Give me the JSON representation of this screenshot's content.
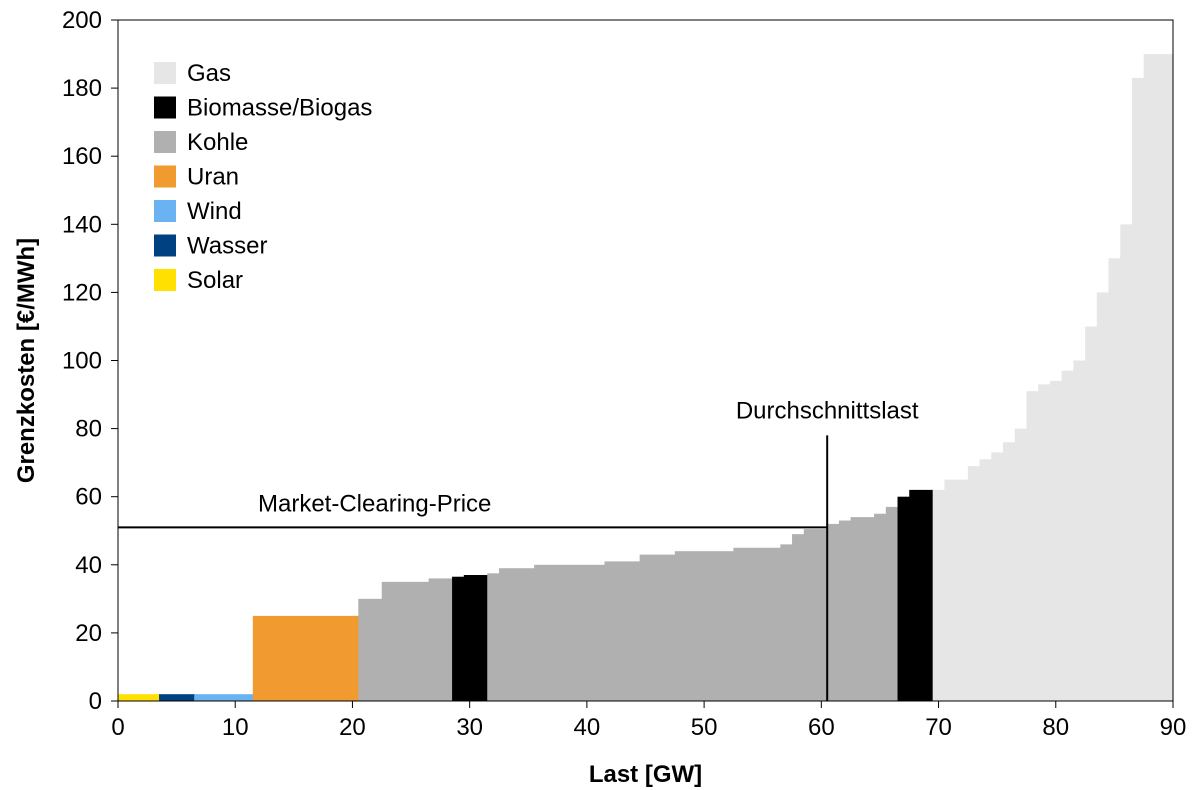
{
  "chart_data": {
    "type": "bar",
    "subtype": "merit-order",
    "xlabel": "Last [GW]",
    "ylabel": "Grenzkosten [€/MWh]",
    "xlim": [
      0,
      90
    ],
    "ylim": [
      0,
      200
    ],
    "xticks": [
      "0",
      "10",
      "20",
      "30",
      "40",
      "50",
      "60",
      "70",
      "80",
      "90"
    ],
    "yticks": [
      "0",
      "20",
      "40",
      "60",
      "80",
      "100",
      "120",
      "140",
      "160",
      "180",
      "200"
    ],
    "colors": {
      "Gas": "#e6e6e6",
      "Biomasse/Biogas": "#000000",
      "Kohle": "#b0b0b0",
      "Uran": "#f09a30",
      "Wind": "#6ab2f2",
      "Wasser": "#004182",
      "Solar": "#ffe000"
    },
    "legend": [
      {
        "name": "Gas",
        "color": "#e6e6e6"
      },
      {
        "name": "Biomasse/Biogas",
        "color": "#000000"
      },
      {
        "name": "Kohle",
        "color": "#b0b0b0"
      },
      {
        "name": "Uran",
        "color": "#f09a30"
      },
      {
        "name": "Wind",
        "color": "#6ab2f2"
      },
      {
        "name": "Wasser",
        "color": "#004182"
      },
      {
        "name": "Solar",
        "color": "#ffe000"
      }
    ],
    "segments": [
      {
        "type": "Solar",
        "x0": 0,
        "x1": 3.5,
        "y": 2
      },
      {
        "type": "Wasser",
        "x0": 3.5,
        "x1": 6.5,
        "y": 2
      },
      {
        "type": "Wind",
        "x0": 6.5,
        "x1": 11.5,
        "y": 2
      },
      {
        "type": "Uran",
        "x0": 11.5,
        "x1": 20.5,
        "y": 25
      },
      {
        "type": "Kohle",
        "x0": 20.5,
        "x1": 22.5,
        "y": 30
      },
      {
        "type": "Kohle",
        "x0": 22.5,
        "x1": 26.5,
        "y": 35
      },
      {
        "type": "Kohle",
        "x0": 26.5,
        "x1": 28.5,
        "y": 36
      },
      {
        "type": "Biomasse/Biogas",
        "x0": 28.5,
        "x1": 29.5,
        "y": 36.5
      },
      {
        "type": "Biomasse/Biogas",
        "x0": 29.5,
        "x1": 31.5,
        "y": 37
      },
      {
        "type": "Kohle",
        "x0": 31.5,
        "x1": 32.5,
        "y": 37.5
      },
      {
        "type": "Kohle",
        "x0": 32.5,
        "x1": 35.5,
        "y": 39
      },
      {
        "type": "Kohle",
        "x0": 35.5,
        "x1": 41.5,
        "y": 40
      },
      {
        "type": "Kohle",
        "x0": 41.5,
        "x1": 44.5,
        "y": 41
      },
      {
        "type": "Kohle",
        "x0": 44.5,
        "x1": 47.5,
        "y": 43
      },
      {
        "type": "Kohle",
        "x0": 47.5,
        "x1": 52.5,
        "y": 44
      },
      {
        "type": "Kohle",
        "x0": 52.5,
        "x1": 56.5,
        "y": 45
      },
      {
        "type": "Kohle",
        "x0": 56.5,
        "x1": 57.5,
        "y": 46
      },
      {
        "type": "Kohle",
        "x0": 57.5,
        "x1": 58.5,
        "y": 49
      },
      {
        "type": "Kohle",
        "x0": 58.5,
        "x1": 60.5,
        "y": 50.5
      },
      {
        "type": "Kohle",
        "x0": 60.5,
        "x1": 61.5,
        "y": 52
      },
      {
        "type": "Kohle",
        "x0": 61.5,
        "x1": 62.5,
        "y": 53
      },
      {
        "type": "Kohle",
        "x0": 62.5,
        "x1": 64.5,
        "y": 54
      },
      {
        "type": "Kohle",
        "x0": 64.5,
        "x1": 65.5,
        "y": 55
      },
      {
        "type": "Kohle",
        "x0": 65.5,
        "x1": 66.5,
        "y": 57
      },
      {
        "type": "Biomasse/Biogas",
        "x0": 66.5,
        "x1": 67.5,
        "y": 60
      },
      {
        "type": "Biomasse/Biogas",
        "x0": 67.5,
        "x1": 69.5,
        "y": 62
      },
      {
        "type": "Gas",
        "x0": 69.5,
        "x1": 70.5,
        "y": 62
      },
      {
        "type": "Gas",
        "x0": 70.5,
        "x1": 72.5,
        "y": 65
      },
      {
        "type": "Gas",
        "x0": 72.5,
        "x1": 73.5,
        "y": 69
      },
      {
        "type": "Gas",
        "x0": 73.5,
        "x1": 74.5,
        "y": 71
      },
      {
        "type": "Gas",
        "x0": 74.5,
        "x1": 75.5,
        "y": 73
      },
      {
        "type": "Gas",
        "x0": 75.5,
        "x1": 76.5,
        "y": 76
      },
      {
        "type": "Gas",
        "x0": 76.5,
        "x1": 77.5,
        "y": 80
      },
      {
        "type": "Gas",
        "x0": 77.5,
        "x1": 78.5,
        "y": 91
      },
      {
        "type": "Gas",
        "x0": 78.5,
        "x1": 79.5,
        "y": 93
      },
      {
        "type": "Gas",
        "x0": 79.5,
        "x1": 80.5,
        "y": 94
      },
      {
        "type": "Gas",
        "x0": 80.5,
        "x1": 81.5,
        "y": 97
      },
      {
        "type": "Gas",
        "x0": 81.5,
        "x1": 82.5,
        "y": 100
      },
      {
        "type": "Gas",
        "x0": 82.5,
        "x1": 83.5,
        "y": 110
      },
      {
        "type": "Gas",
        "x0": 83.5,
        "x1": 84.5,
        "y": 120
      },
      {
        "type": "Gas",
        "x0": 84.5,
        "x1": 85.5,
        "y": 130
      },
      {
        "type": "Gas",
        "x0": 85.5,
        "x1": 86.5,
        "y": 140
      },
      {
        "type": "Gas",
        "x0": 86.5,
        "x1": 87.5,
        "y": 183
      },
      {
        "type": "Gas",
        "x0": 87.5,
        "x1": 90,
        "y": 190
      }
    ],
    "annotations": {
      "market_clearing_price": {
        "label": "Market-Clearing-Price",
        "y": 51,
        "x_end": 60.5
      },
      "average_load": {
        "label": "Durchschnittslast",
        "x": 60.5,
        "y_top": 78
      }
    }
  }
}
